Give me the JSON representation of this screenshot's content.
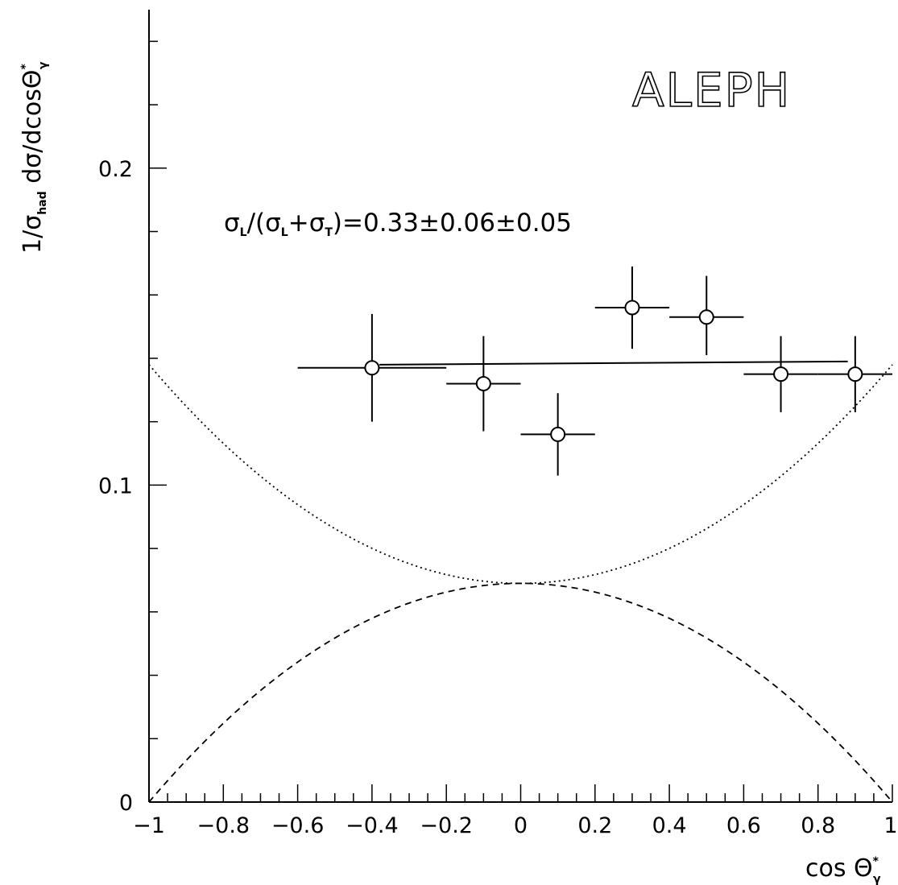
{
  "chart_data": {
    "type": "scatter",
    "experiment_label": "ALEPH",
    "annotation": {
      "sigma": "σ",
      "sub_L": "L",
      "sub_T": "T",
      "text_open": "/(",
      "text_plus": "+",
      "text_result": ")=0.33±0.06±0.05"
    },
    "xlabel": {
      "main": "cos Θ",
      "sup": "*",
      "sub": "γ"
    },
    "ylabel": {
      "prefix": "1/σ",
      "sub": "had",
      "middle": " dσ/dcosΘ",
      "sup": "*",
      "sub2": "γ"
    },
    "xlim": [
      -1,
      1
    ],
    "ylim": [
      0,
      0.25
    ],
    "x_ticks": [
      -1,
      -0.8,
      -0.6,
      -0.4,
      -0.2,
      0,
      0.2,
      0.4,
      0.6,
      0.8,
      1
    ],
    "x_tick_labels": [
      "−1",
      "−0.8",
      "−0.6",
      "−0.4",
      "−0.2",
      "0",
      "0.2",
      "0.4",
      "0.6",
      "0.8",
      "1"
    ],
    "y_ticks": [
      0,
      0.1,
      0.2
    ],
    "y_tick_labels": [
      "0",
      "0.1",
      "0.2"
    ],
    "y_minor_step": 0.02,
    "x_minor_step": 0.05,
    "points": [
      {
        "x": -0.4,
        "y": 0.137,
        "xerr": 0.2,
        "yerr_up": 0.017,
        "yerr_down": 0.017
      },
      {
        "x": -0.1,
        "y": 0.132,
        "xerr": 0.1,
        "yerr_up": 0.015,
        "yerr_down": 0.015
      },
      {
        "x": 0.1,
        "y": 0.116,
        "xerr": 0.1,
        "yerr_up": 0.013,
        "yerr_down": 0.013
      },
      {
        "x": 0.3,
        "y": 0.156,
        "xerr": 0.1,
        "yerr_up": 0.013,
        "yerr_down": 0.013
      },
      {
        "x": 0.5,
        "y": 0.153,
        "xerr": 0.1,
        "yerr_up": 0.013,
        "yerr_down": 0.012
      },
      {
        "x": 0.7,
        "y": 0.135,
        "xerr": 0.1,
        "yerr_up": 0.012,
        "yerr_down": 0.012
      },
      {
        "x": 0.9,
        "y": 0.135,
        "xerr": 0.1,
        "yerr_up": 0.012,
        "yerr_down": 0.012
      }
    ],
    "fit_line": {
      "x": [
        -0.38,
        0.88
      ],
      "y": [
        0.138,
        0.139
      ]
    },
    "curves": [
      {
        "style": "dotted",
        "formula": "0.069*(1+cos^2)",
        "y_at_0": 0.069,
        "y_at_1": 0.138
      },
      {
        "style": "dashed",
        "formula": "0.069*(1-cos^2)",
        "y_at_0": 0.069,
        "y_at_1": 0.0
      }
    ],
    "grid": false
  }
}
